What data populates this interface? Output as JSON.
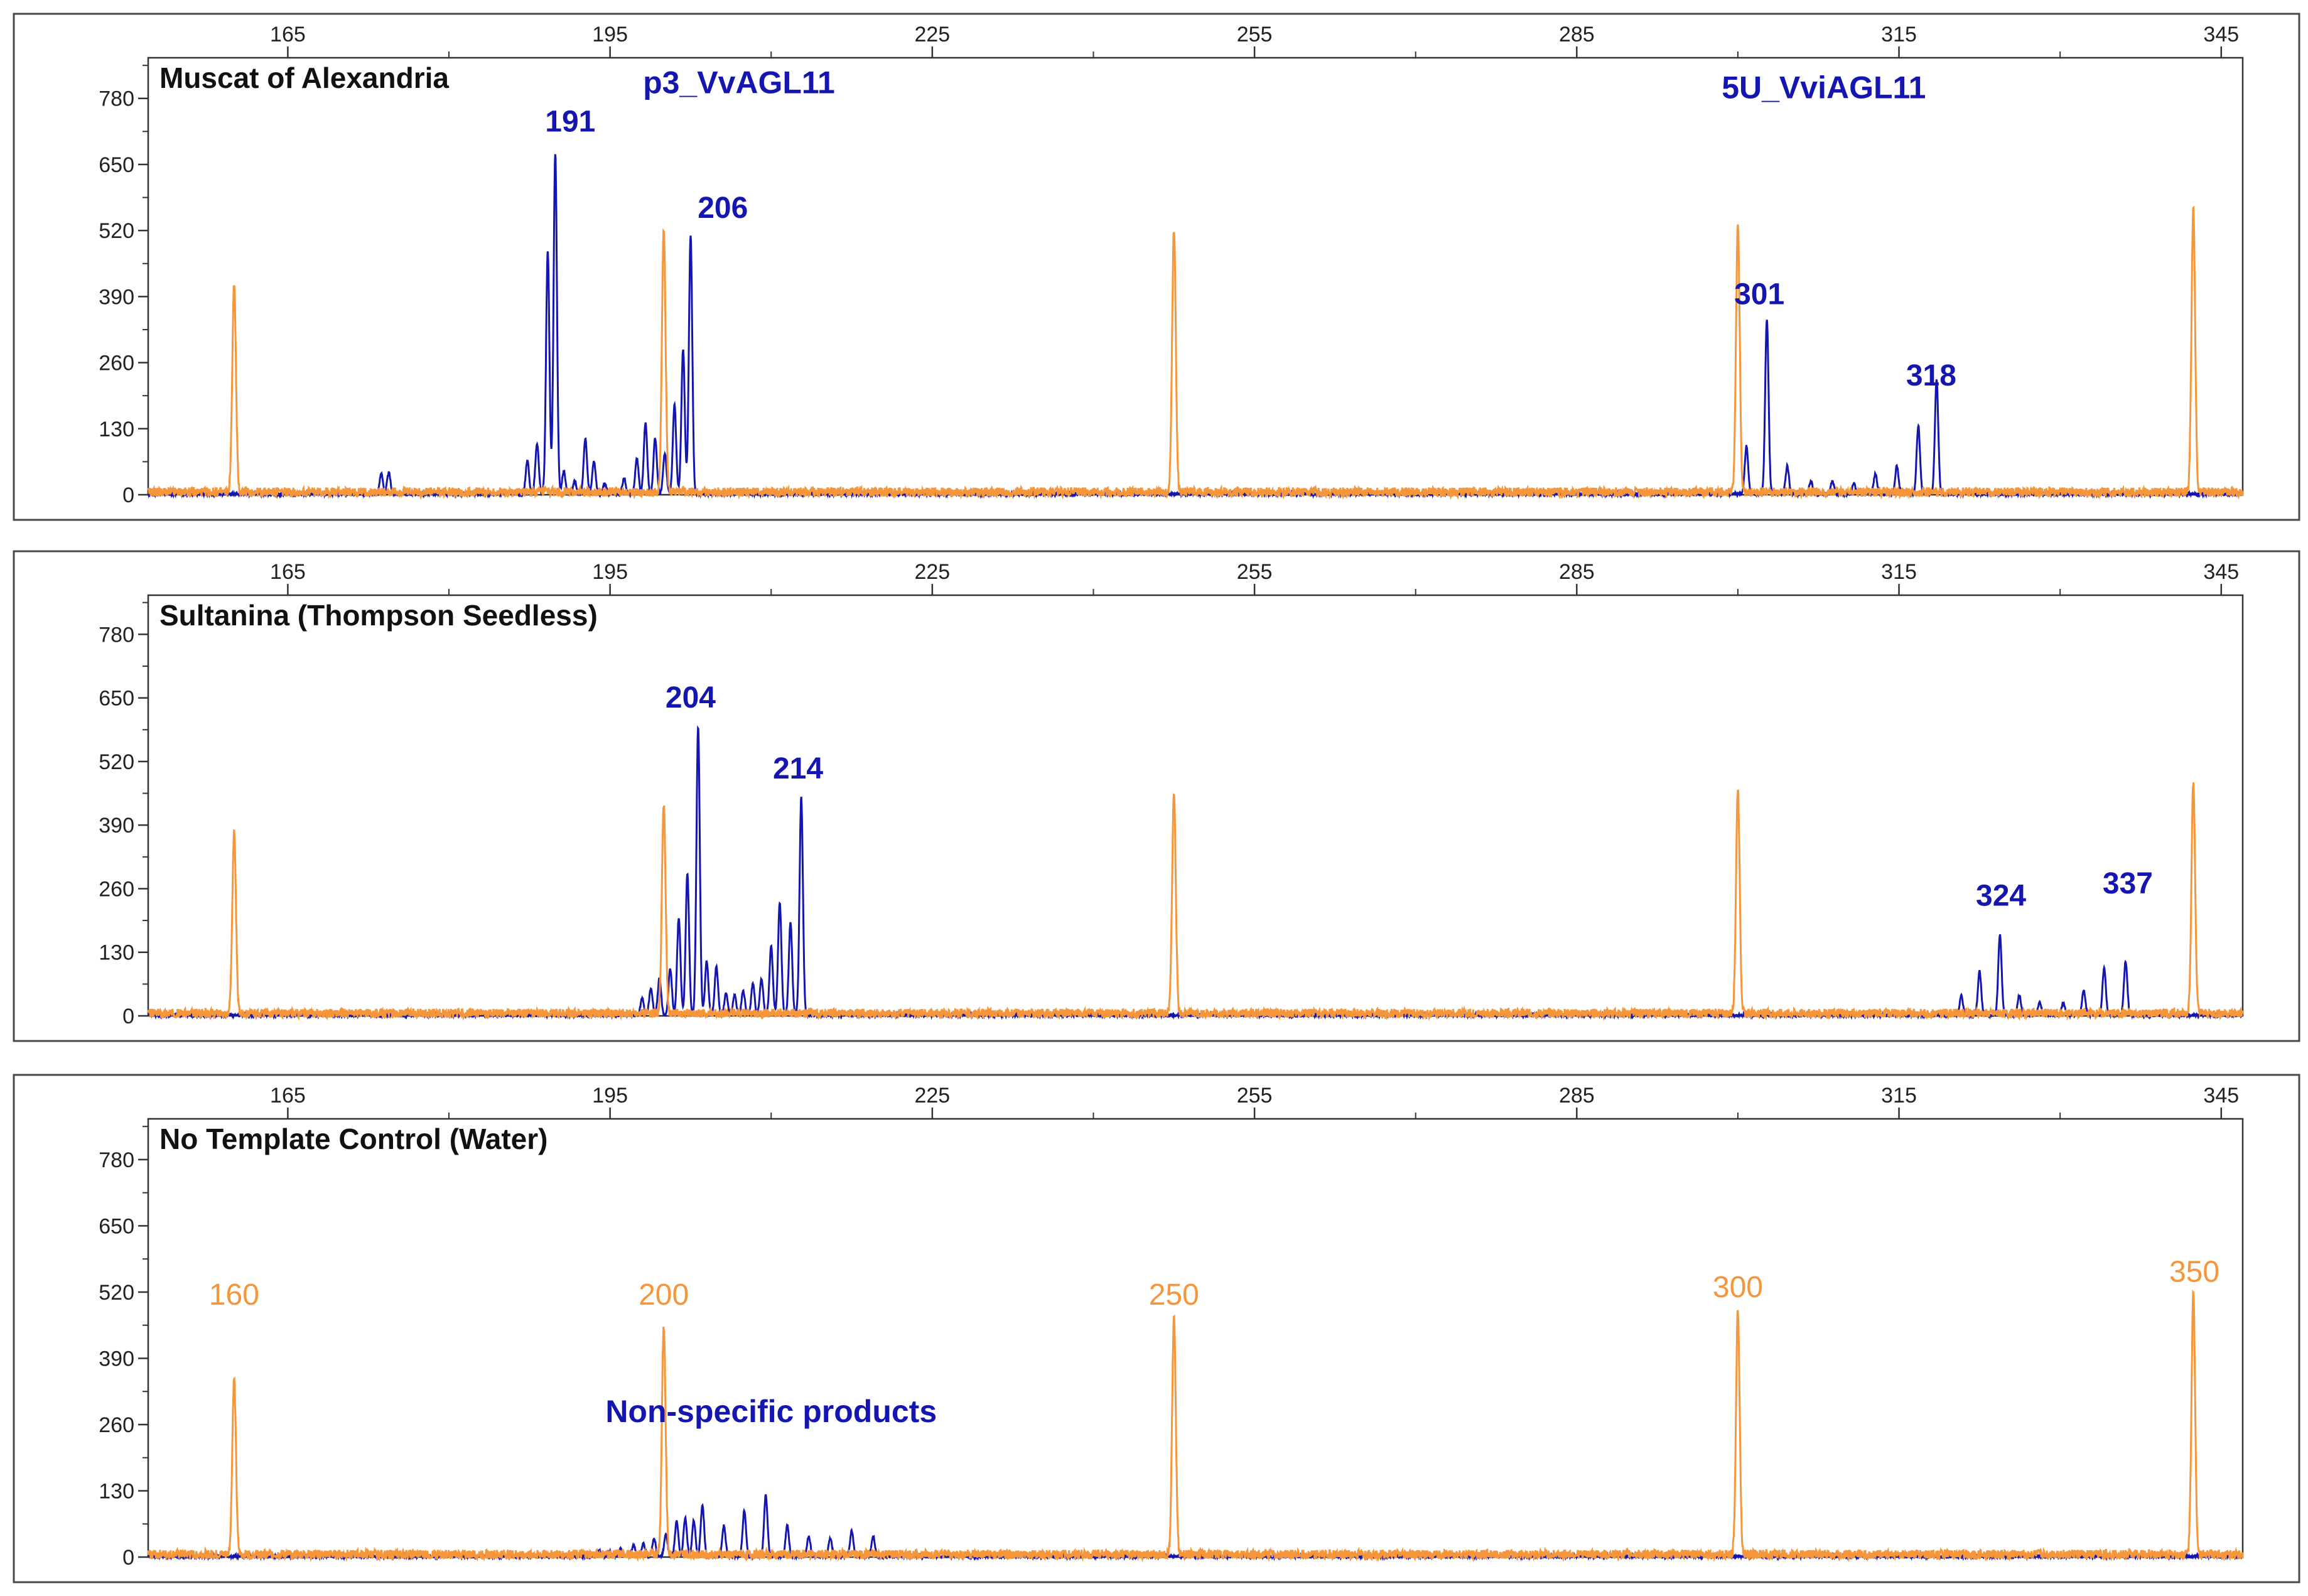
{
  "chart_data": [
    {
      "type": "line",
      "title": "Muscat of Alexandria",
      "x_ticks": [
        165,
        195,
        225,
        255,
        285,
        315,
        345
      ],
      "y_ticks": [
        0,
        130,
        260,
        390,
        520,
        650,
        780
      ],
      "xlim": [
        152,
        347
      ],
      "ylim": [
        0,
        860
      ],
      "colors": {
        "sample": "#1515b0",
        "ladder": "#f5963a",
        "label": "#1515b0",
        "ladder_label": "#f5963a"
      },
      "annotations": [
        {
          "text": "p3_VvAGL11",
          "x": 207,
          "y": 790,
          "big": true
        },
        {
          "text": "5U_VviAGL11",
          "x": 308,
          "y": 780,
          "big": true
        },
        {
          "text": "191",
          "x": 191.3,
          "y": 715
        },
        {
          "text": "206",
          "x": 205.5,
          "y": 545
        },
        {
          "text": "301",
          "x": 302,
          "y": 375
        },
        {
          "text": "318",
          "x": 318,
          "y": 215
        }
      ],
      "series": [
        {
          "name": "sample",
          "color": "#1515b0",
          "peaks": [
            [
              173.7,
              40
            ],
            [
              174.4,
              42
            ],
            [
              187.3,
              65
            ],
            [
              188.2,
              100
            ],
            [
              189.2,
              480
            ],
            [
              189.9,
              670
            ],
            [
              190.7,
              45
            ],
            [
              191.7,
              25
            ],
            [
              192.7,
              110
            ],
            [
              193.5,
              65
            ],
            [
              194.5,
              20
            ],
            [
              196.3,
              30
            ],
            [
              197.5,
              70
            ],
            [
              198.3,
              140
            ],
            [
              199.2,
              110
            ],
            [
              200.1,
              80
            ],
            [
              201,
              175
            ],
            [
              201.8,
              285
            ],
            [
              202.5,
              510
            ],
            [
              300.8,
              95
            ],
            [
              302.7,
              345
            ],
            [
              304.6,
              55
            ],
            [
              306.8,
              25
            ],
            [
              308.8,
              25
            ],
            [
              310.8,
              20
            ],
            [
              312.8,
              40
            ],
            [
              314.8,
              55
            ],
            [
              316.8,
              135
            ],
            [
              318.5,
              225
            ]
          ]
        },
        {
          "name": "ladder",
          "color": "#f5963a",
          "peaks": [
            [
              160,
              410
            ],
            [
              200,
              520
            ],
            [
              247.5,
              520
            ],
            [
              300,
              530
            ],
            [
              342.4,
              560
            ]
          ]
        }
      ]
    },
    {
      "type": "line",
      "title": "Sultanina (Thompson Seedless)",
      "x_ticks": [
        165,
        195,
        225,
        255,
        285,
        315,
        345
      ],
      "y_ticks": [
        0,
        130,
        260,
        390,
        520,
        650,
        780
      ],
      "xlim": [
        152,
        347
      ],
      "ylim": [
        0,
        860
      ],
      "colors": {
        "sample": "#1515b0",
        "ladder": "#f5963a",
        "label": "#1515b0",
        "ladder_label": "#f5963a"
      },
      "annotations": [
        {
          "text": "204",
          "x": 202.5,
          "y": 630
        },
        {
          "text": "214",
          "x": 212.5,
          "y": 485
        },
        {
          "text": "324",
          "x": 324.5,
          "y": 225
        },
        {
          "text": "337",
          "x": 336.3,
          "y": 250
        }
      ],
      "series": [
        {
          "name": "sample",
          "color": "#1515b0",
          "peaks": [
            [
              198,
              35
            ],
            [
              198.8,
              55
            ],
            [
              199.6,
              75
            ],
            [
              200.6,
              95
            ],
            [
              201.4,
              200
            ],
            [
              202.2,
              290
            ],
            [
              203.2,
              590
            ],
            [
              204,
              110
            ],
            [
              204.9,
              100
            ],
            [
              205.8,
              45
            ],
            [
              206.6,
              40
            ],
            [
              207.4,
              50
            ],
            [
              208.3,
              65
            ],
            [
              209.1,
              75
            ],
            [
              210,
              140
            ],
            [
              210.8,
              230
            ],
            [
              211.8,
              190
            ],
            [
              212.8,
              445
            ],
            [
              320.8,
              40
            ],
            [
              322.5,
              90
            ],
            [
              324.4,
              165
            ],
            [
              326.2,
              40
            ],
            [
              328.1,
              25
            ],
            [
              330.3,
              25
            ],
            [
              332.2,
              50
            ],
            [
              334.1,
              95
            ],
            [
              336.1,
              110
            ]
          ]
        },
        {
          "name": "ladder",
          "color": "#f5963a",
          "peaks": [
            [
              160,
              370
            ],
            [
              200,
              425
            ],
            [
              247.5,
              450
            ],
            [
              300,
              460
            ],
            [
              342.4,
              470
            ]
          ]
        }
      ]
    },
    {
      "type": "line",
      "title": "No Template Control (Water)",
      "x_ticks": [
        165,
        195,
        225,
        255,
        285,
        315,
        345
      ],
      "y_ticks": [
        0,
        130,
        260,
        390,
        520,
        650,
        780
      ],
      "xlim": [
        152,
        347
      ],
      "ylim": [
        0,
        860
      ],
      "colors": {
        "sample": "#1515b0",
        "ladder": "#f5963a",
        "label": "#1515b0",
        "ladder_label": "#f5963a"
      },
      "annotations": [
        {
          "text": "Non-specific products",
          "x": 210,
          "y": 265,
          "big": true
        },
        {
          "text": "160",
          "x": 160,
          "y": 495,
          "ladder": true
        },
        {
          "text": "200",
          "x": 200,
          "y": 495,
          "ladder": true
        },
        {
          "text": "250",
          "x": 247.5,
          "y": 495,
          "ladder": true
        },
        {
          "text": "300",
          "x": 300,
          "y": 510,
          "ladder": true
        },
        {
          "text": "350",
          "x": 342.5,
          "y": 540,
          "ladder": true
        }
      ],
      "series": [
        {
          "name": "sample",
          "color": "#1515b0",
          "peaks": [
            [
              194,
              10
            ],
            [
              195,
              10
            ],
            [
              196,
              15
            ],
            [
              197.2,
              20
            ],
            [
              198.1,
              25
            ],
            [
              199.1,
              35
            ],
            [
              200.2,
              45
            ],
            [
              201.2,
              70
            ],
            [
              202,
              75
            ],
            [
              202.8,
              70
            ],
            [
              203.6,
              100
            ],
            [
              205.6,
              60
            ],
            [
              207.5,
              90
            ],
            [
              209.5,
              120
            ],
            [
              211.5,
              60
            ],
            [
              213.5,
              40
            ],
            [
              215.5,
              35
            ],
            [
              217.5,
              50
            ],
            [
              219.5,
              40
            ]
          ]
        },
        {
          "name": "ladder",
          "color": "#f5963a",
          "peaks": [
            [
              160,
              345
            ],
            [
              200,
              450
            ],
            [
              247.5,
              465
            ],
            [
              300,
              480
            ],
            [
              342.4,
              510
            ]
          ]
        }
      ]
    }
  ]
}
